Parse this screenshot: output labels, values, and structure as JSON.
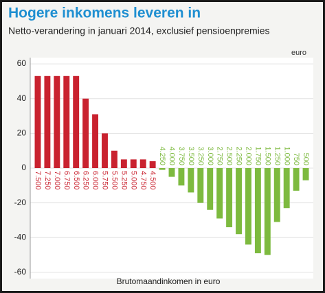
{
  "chart_data": {
    "type": "bar",
    "title": "Hogere inkomens leveren in",
    "subtitle": "Netto-verandering in januari 2014, exclusief pensioenpremies",
    "unit_label": "euro",
    "x_label": "Brutomaandinkomen in euro",
    "categories": [
      "7.500",
      "7.250",
      "7.000",
      "6.750",
      "6.500",
      "6.250",
      "6.000",
      "5.750",
      "5.500",
      "5.250",
      "5.000",
      "4.750",
      "4.500",
      "4.250",
      "4.000",
      "3.750",
      "3.500",
      "3.250",
      "3.000",
      "2.750",
      "2.500",
      "2.250",
      "2.000",
      "1.750",
      "1.500",
      "1.250",
      "1.000",
      "750",
      "500"
    ],
    "values": [
      53,
      53,
      53,
      53,
      53,
      40,
      31,
      20,
      10,
      5,
      5,
      5,
      4,
      -1,
      -5,
      -10,
      -14,
      -20,
      -24,
      -29,
      -34,
      -38,
      -44,
      -49,
      -50,
      -31,
      -23,
      -13,
      -7
    ],
    "color_positive": "#c9222f",
    "color_negative": "#7dba3f",
    "ylim": [
      -62,
      62
    ],
    "yticks": [
      60,
      40,
      20,
      0,
      -20,
      -40,
      -60
    ],
    "grid": true
  }
}
